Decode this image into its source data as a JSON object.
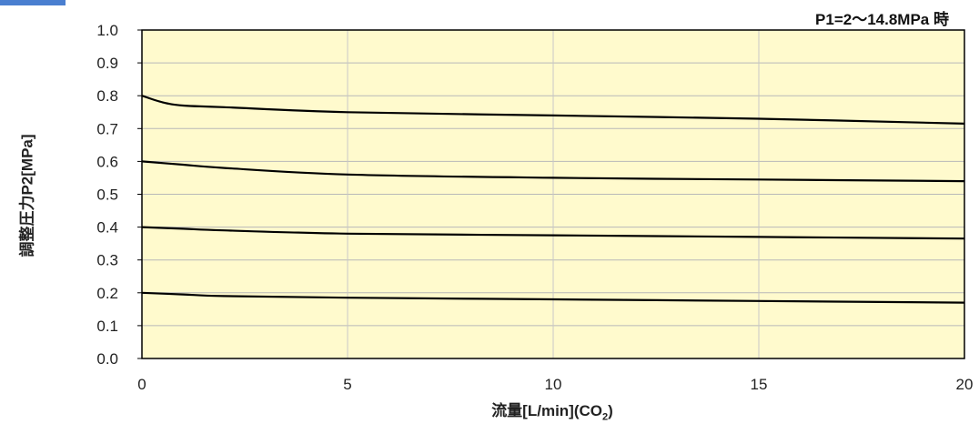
{
  "chart_data": {
    "type": "line",
    "annotation": "P1=2～14.8MPa 時",
    "xlabel_main": "流量[L/min](CO",
    "xlabel_sub": "2",
    "xlabel_end": ")",
    "ylabel": "調整圧力P2[MPa]",
    "xlim": [
      0,
      20
    ],
    "ylim": [
      0,
      1.0
    ],
    "xticks": [
      "0",
      "5",
      "10",
      "15",
      "20"
    ],
    "yticks": [
      "0.0",
      "0.1",
      "0.2",
      "0.3",
      "0.4",
      "0.5",
      "0.6",
      "0.7",
      "0.8",
      "0.9",
      "1.0"
    ],
    "grid": true,
    "plot_background": "#fffacd",
    "line_color": "#000000",
    "series": [
      {
        "x": [
          0,
          0.5,
          1,
          2,
          5,
          10,
          15,
          20
        ],
        "y": [
          0.8,
          0.78,
          0.77,
          0.765,
          0.75,
          0.74,
          0.73,
          0.715
        ]
      },
      {
        "x": [
          0,
          1,
          2,
          5,
          10,
          15,
          20
        ],
        "y": [
          0.6,
          0.59,
          0.58,
          0.56,
          0.55,
          0.545,
          0.54
        ]
      },
      {
        "x": [
          0,
          1,
          2,
          5,
          10,
          15,
          20
        ],
        "y": [
          0.4,
          0.395,
          0.39,
          0.38,
          0.375,
          0.37,
          0.365
        ]
      },
      {
        "x": [
          0,
          1,
          2,
          5,
          10,
          15,
          20
        ],
        "y": [
          0.2,
          0.195,
          0.19,
          0.185,
          0.18,
          0.175,
          0.17
        ]
      }
    ]
  }
}
